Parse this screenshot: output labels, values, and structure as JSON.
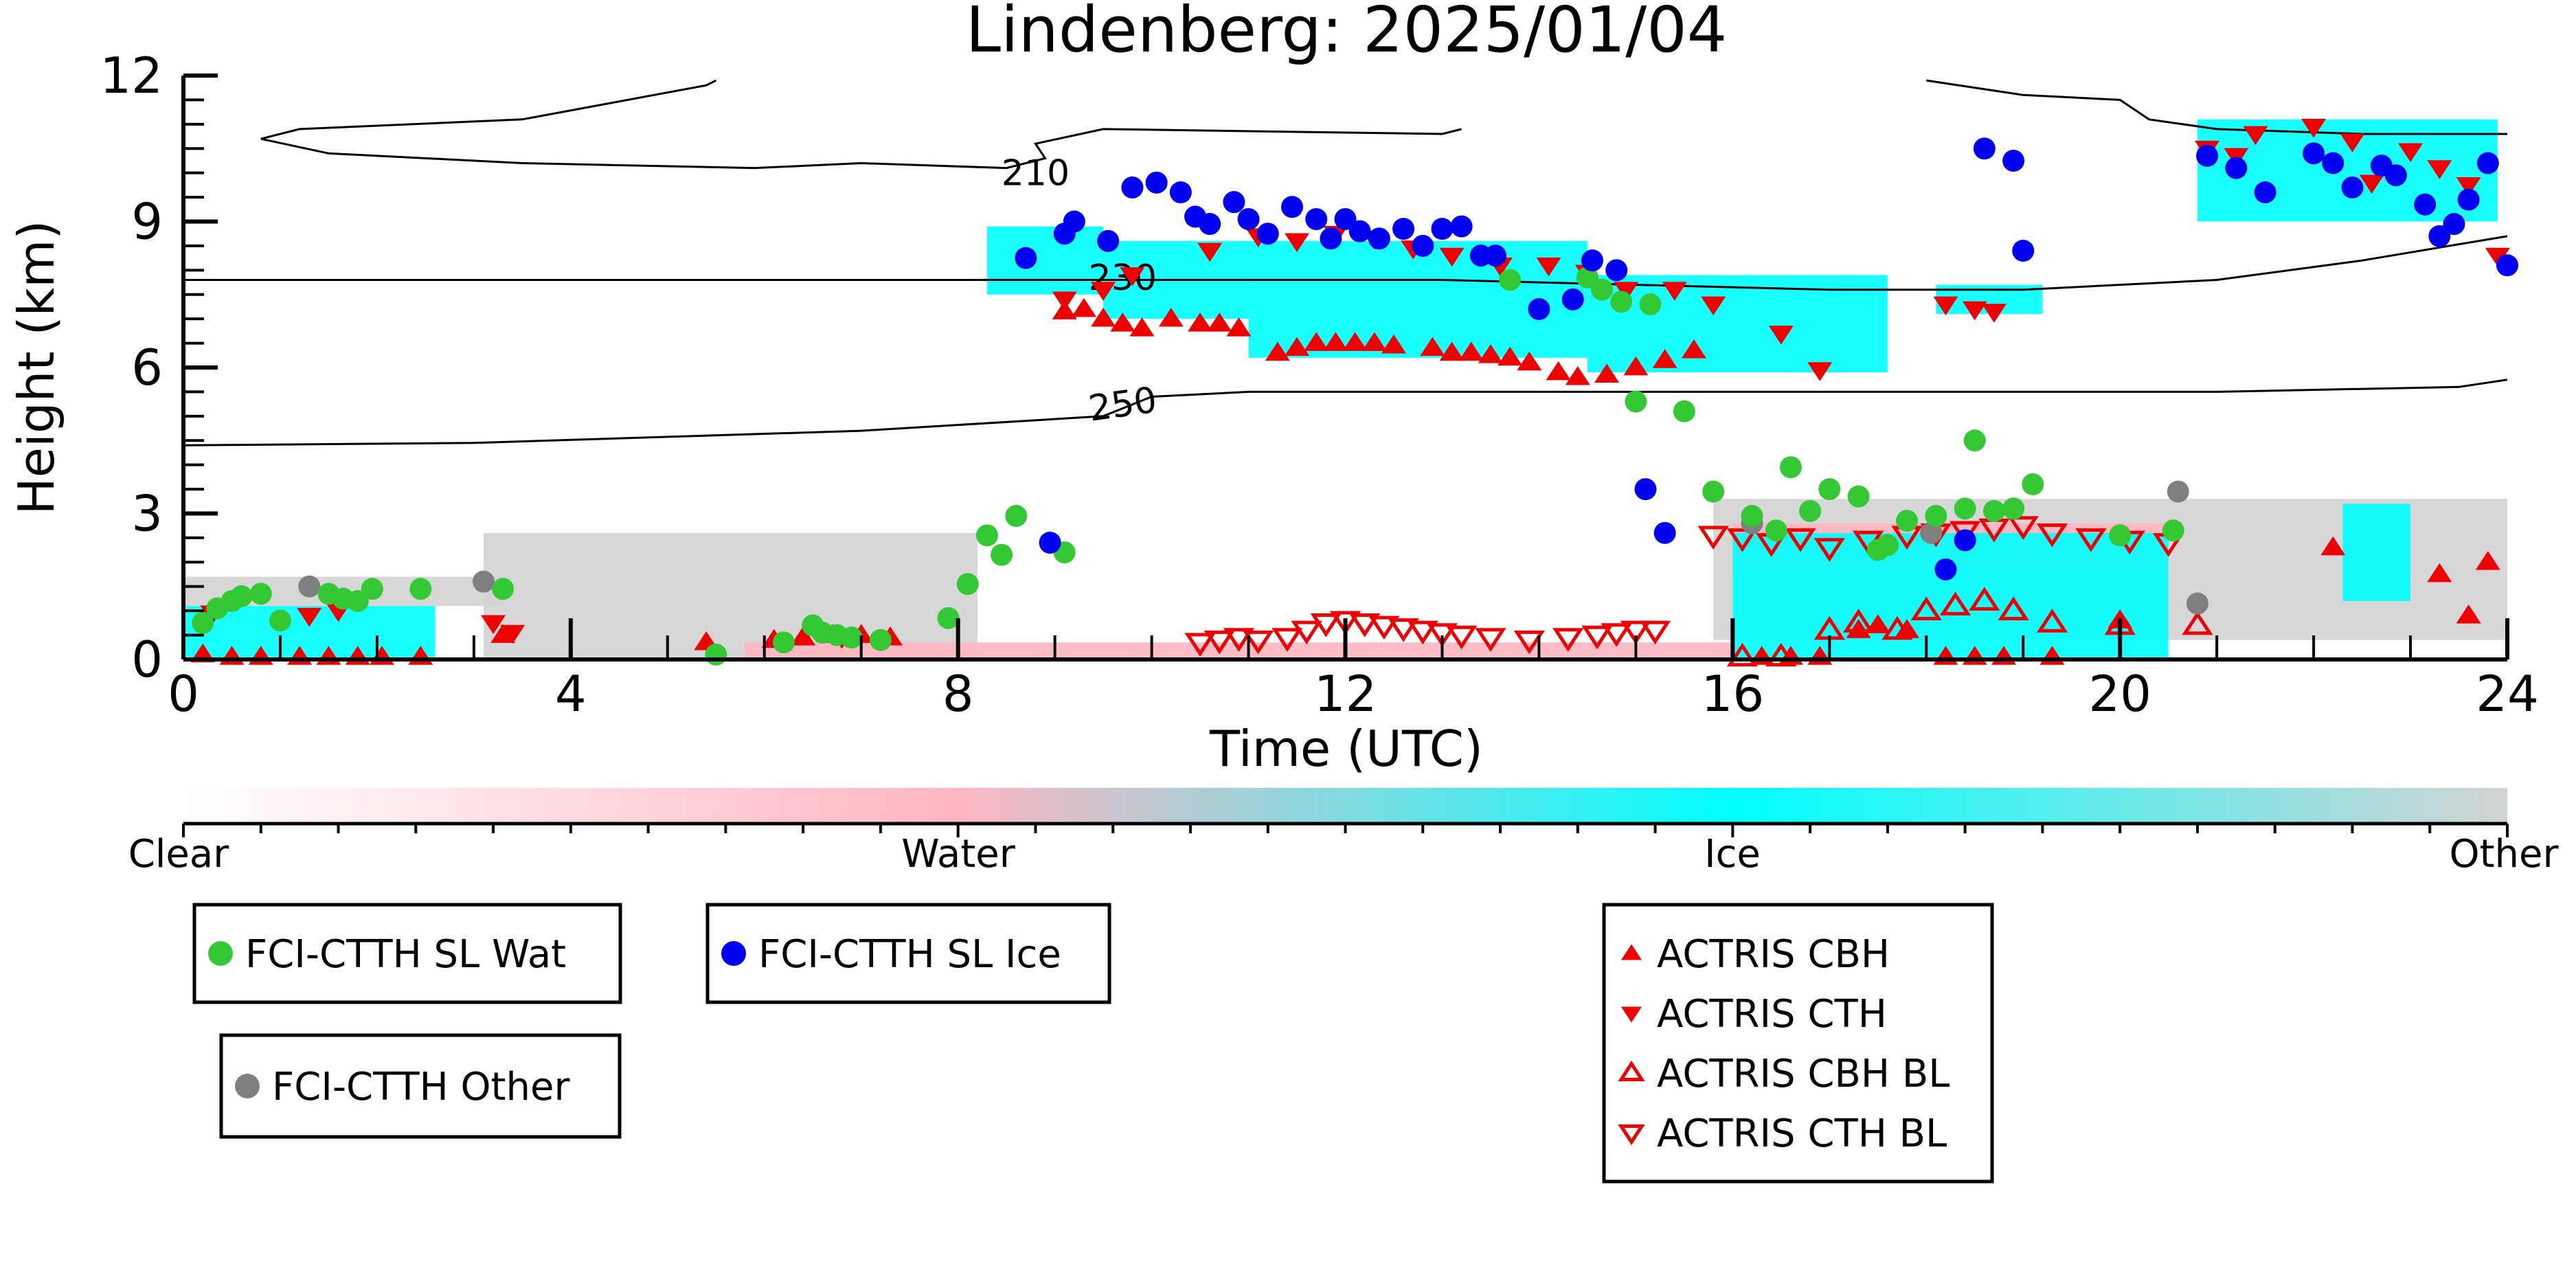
{
  "chart_data": {
    "type": "scatter",
    "title": "Lindenberg: 2025/01/04",
    "xlabel": "Time (UTC)",
    "ylabel": "Height (km)",
    "xlim": [
      0,
      24
    ],
    "ylim": [
      0,
      12
    ],
    "x_ticks": [
      "0",
      "4",
      "8",
      "12",
      "16",
      "20",
      "24"
    ],
    "y_ticks": [
      "0",
      "3",
      "6",
      "9",
      "12"
    ],
    "grid": false,
    "contour_labels": [
      "210",
      "230",
      "250"
    ],
    "contours": [
      {
        "level": "210",
        "points": [
          [
            0.8,
            10.7
          ],
          [
            1.2,
            10.9
          ],
          [
            3.5,
            11.1
          ],
          [
            5.4,
            11.8
          ],
          [
            5.5,
            11.9
          ]
        ]
      },
      {
        "level": "210",
        "points": [
          [
            0.8,
            10.7
          ],
          [
            1.5,
            10.4
          ],
          [
            3.5,
            10.2
          ],
          [
            5.9,
            10.1
          ],
          [
            7.0,
            10.2
          ],
          [
            8.5,
            10.1
          ],
          [
            8.9,
            10.3
          ],
          [
            8.8,
            10.6
          ],
          [
            9.5,
            10.9
          ],
          [
            13.0,
            10.8
          ],
          [
            13.2,
            10.9
          ]
        ]
      },
      {
        "level": "210",
        "points": [
          [
            18.0,
            11.9
          ],
          [
            19.0,
            11.6
          ],
          [
            20.0,
            11.5
          ],
          [
            20.3,
            11.1
          ],
          [
            21.0,
            10.9
          ],
          [
            22.5,
            10.8
          ],
          [
            24.0,
            10.8
          ]
        ]
      },
      {
        "level": "230",
        "points": [
          [
            0,
            7.8
          ],
          [
            6.0,
            7.8
          ],
          [
            10.0,
            7.8
          ],
          [
            13.0,
            7.8
          ],
          [
            15.0,
            7.7
          ],
          [
            17.0,
            7.6
          ],
          [
            19.0,
            7.6
          ],
          [
            21.0,
            7.8
          ],
          [
            22.5,
            8.2
          ],
          [
            24.0,
            8.7
          ]
        ]
      },
      {
        "level": "250",
        "points": [
          [
            0,
            4.4
          ],
          [
            3.0,
            4.45
          ],
          [
            7.0,
            4.7
          ],
          [
            9.5,
            5.0
          ],
          [
            10.0,
            5.4
          ],
          [
            11.0,
            5.5
          ],
          [
            13.0,
            5.5
          ],
          [
            16.0,
            5.5
          ],
          [
            21.0,
            5.5
          ],
          [
            23.5,
            5.6
          ],
          [
            24.0,
            5.75
          ]
        ]
      }
    ],
    "series": [
      {
        "name": "FCI-CTTH SL Wat",
        "marker": "circle",
        "color": "#34c834",
        "x": [
          0.2,
          0.35,
          0.5,
          0.6,
          0.8,
          1.0,
          1.5,
          1.65,
          1.8,
          1.95,
          2.45,
          3.3,
          5.5,
          6.2,
          6.5,
          6.6,
          6.75,
          6.9,
          7.2,
          7.9,
          8.1,
          8.3,
          8.45,
          8.6,
          9.1,
          13.7,
          14.5,
          14.65,
          14.85,
          15.0,
          15.15,
          15.5,
          15.8,
          16.2,
          16.45,
          16.6,
          16.8,
          17.0,
          17.3,
          17.5,
          17.6,
          17.8,
          18.1,
          18.4,
          18.5,
          18.7,
          18.9,
          19.1,
          20.0,
          20.55
        ],
        "y": [
          0.75,
          1.05,
          1.2,
          1.3,
          1.35,
          0.8,
          1.35,
          1.25,
          1.2,
          1.45,
          1.45,
          1.45,
          0.1,
          0.35,
          0.7,
          0.55,
          0.5,
          0.45,
          0.4,
          0.85,
          1.55,
          2.55,
          2.15,
          2.95,
          2.2,
          7.8,
          7.85,
          7.6,
          7.35,
          5.3,
          7.3,
          5.1,
          3.45,
          2.95,
          2.65,
          3.95,
          3.05,
          3.5,
          3.35,
          2.25,
          2.35,
          2.85,
          2.95,
          3.1,
          4.5,
          3.05,
          3.1,
          3.6,
          2.55,
          2.65
        ]
      },
      {
        "name": "FCI-CTTH SL Ice",
        "marker": "circle",
        "color": "#0000f0",
        "x": [
          8.7,
          8.95,
          9.1,
          9.2,
          9.55,
          9.8,
          10.05,
          10.3,
          10.45,
          10.6,
          10.85,
          11.0,
          11.2,
          11.45,
          11.7,
          11.85,
          12.0,
          12.15,
          12.35,
          12.6,
          12.8,
          13.0,
          13.2,
          13.4,
          13.55,
          14.0,
          14.35,
          14.55,
          14.8,
          15.1,
          15.3,
          18.2,
          18.4,
          18.6,
          18.9,
          19.0,
          20.9,
          21.2,
          21.5,
          22.0,
          22.2,
          22.4,
          22.7,
          22.85,
          23.15,
          23.3,
          23.45,
          23.6,
          23.8,
          24.0
        ],
        "y": [
          8.25,
          2.4,
          8.75,
          9.0,
          8.6,
          9.7,
          9.8,
          9.6,
          9.1,
          8.95,
          9.4,
          9.05,
          8.75,
          9.3,
          9.05,
          8.65,
          9.05,
          8.8,
          8.65,
          8.85,
          8.5,
          8.85,
          8.9,
          8.3,
          8.3,
          7.2,
          7.4,
          8.2,
          8.0,
          3.5,
          2.6,
          1.85,
          2.45,
          10.5,
          10.25,
          8.4,
          10.35,
          10.1,
          9.6,
          10.4,
          10.2,
          9.7,
          10.15,
          9.95,
          9.35,
          8.7,
          8.95,
          9.45,
          10.2,
          8.1
        ]
      },
      {
        "name": "FCI-CTTH Other",
        "marker": "circle",
        "color": "#7f7f7f",
        "x": [
          1.3,
          3.1,
          16.2,
          18.05,
          20.6,
          20.8
        ],
        "y": [
          1.5,
          1.6,
          2.8,
          2.6,
          3.45,
          1.15
        ]
      },
      {
        "name": "ACTRIS CBH",
        "marker": "triangle-up",
        "color": "#ee0000",
        "x": [
          0.2,
          0.5,
          0.8,
          1.2,
          1.5,
          1.8,
          2.05,
          2.45,
          3.3,
          5.4,
          6.1,
          6.4,
          6.7,
          7.0,
          7.3,
          9.1,
          9.3,
          9.5,
          9.7,
          9.9,
          10.2,
          10.5,
          10.7,
          10.9,
          11.3,
          11.5,
          11.7,
          11.9,
          12.1,
          12.3,
          12.5,
          12.9,
          13.1,
          13.3,
          13.5,
          13.7,
          13.9,
          14.2,
          14.4,
          14.7,
          15.0,
          15.3,
          15.6,
          16.3,
          16.6,
          16.9,
          17.3,
          17.5,
          17.8,
          18.2,
          18.5,
          18.8,
          19.3,
          20.0,
          22.2,
          23.3,
          23.6,
          23.8
        ],
        "y": [
          0.1,
          0.05,
          0.05,
          0.05,
          0.05,
          0.05,
          0.05,
          0.05,
          0.5,
          0.35,
          0.4,
          0.45,
          0.5,
          0.5,
          0.45,
          7.15,
          7.2,
          7.0,
          6.9,
          6.8,
          7.0,
          6.9,
          6.9,
          6.8,
          6.3,
          6.4,
          6.5,
          6.5,
          6.5,
          6.5,
          6.45,
          6.4,
          6.3,
          6.3,
          6.25,
          6.2,
          6.1,
          5.9,
          5.8,
          5.85,
          6.0,
          6.15,
          6.35,
          0.05,
          0.05,
          0.05,
          0.6,
          0.7,
          0.6,
          0.05,
          0.05,
          0.05,
          0.05,
          0.8,
          2.3,
          1.75,
          0.9,
          2.0
        ]
      },
      {
        "name": "ACTRIS CTH",
        "marker": "triangle-down",
        "color": "#ee0000",
        "x": [
          0.3,
          1.3,
          1.6,
          3.2,
          3.4,
          6.8,
          9.1,
          9.5,
          9.8,
          10.6,
          11.1,
          11.5,
          11.9,
          12.3,
          12.7,
          13.1,
          13.6,
          14.1,
          14.5,
          14.9,
          15.4,
          15.8,
          16.5,
          16.9,
          18.2,
          18.5,
          18.7,
          20.9,
          21.2,
          21.4,
          22.0,
          22.4,
          22.6,
          23.0,
          23.3,
          23.6,
          23.9
        ],
        "y": [
          0.95,
          0.9,
          1.0,
          0.75,
          0.55,
          0.45,
          7.4,
          7.6,
          7.9,
          8.4,
          8.7,
          8.6,
          8.75,
          8.65,
          8.45,
          8.3,
          8.1,
          8.1,
          7.95,
          7.6,
          7.6,
          7.3,
          6.7,
          5.95,
          7.3,
          7.2,
          7.15,
          10.5,
          10.35,
          10.8,
          10.95,
          10.65,
          9.8,
          10.45,
          10.1,
          9.75,
          8.3
        ]
      },
      {
        "name": "ACTRIS CBH BL",
        "marker": "triangle-up-open",
        "color": "#ee0000",
        "x": [
          16.1,
          16.5,
          17.0,
          17.3,
          17.7,
          18.0,
          18.3,
          18.6,
          18.9,
          19.3,
          20.0,
          20.8
        ],
        "y": [
          0.05,
          0.05,
          0.6,
          0.75,
          0.6,
          1.0,
          1.1,
          1.2,
          1.0,
          0.75,
          0.7,
          0.7
        ]
      },
      {
        "name": "ACTRIS CTH BL",
        "marker": "triangle-down-open",
        "color": "#ee0000",
        "x": [
          10.5,
          10.7,
          10.9,
          11.1,
          11.4,
          11.6,
          11.8,
          12.0,
          12.2,
          12.4,
          12.6,
          12.8,
          13.0,
          13.2,
          13.5,
          13.9,
          14.3,
          14.6,
          14.8,
          15.0,
          15.2,
          15.8,
          16.1,
          16.4,
          16.7,
          17.0,
          17.4,
          17.8,
          18.1,
          18.4,
          18.7,
          19.0,
          19.3,
          19.7,
          20.1,
          20.5
        ],
        "y": [
          0.35,
          0.4,
          0.45,
          0.4,
          0.45,
          0.6,
          0.75,
          0.8,
          0.75,
          0.7,
          0.65,
          0.6,
          0.55,
          0.5,
          0.45,
          0.4,
          0.45,
          0.5,
          0.55,
          0.6,
          0.6,
          2.55,
          2.5,
          2.4,
          2.5,
          2.3,
          2.45,
          2.55,
          2.6,
          2.65,
          2.7,
          2.75,
          2.6,
          2.5,
          2.45,
          2.4
        ]
      }
    ],
    "colorbar": {
      "labels": [
        "Clear",
        "Water",
        "Ice",
        "Other"
      ],
      "colors": [
        "#ffffff",
        "#ffb6c1",
        "#00ffff",
        "#d3d3d3"
      ]
    },
    "legend_placement": "below",
    "background_colors": {
      "water": "#ffb6c1",
      "ice": "#00ffff",
      "other": "#d3d3d3"
    }
  }
}
